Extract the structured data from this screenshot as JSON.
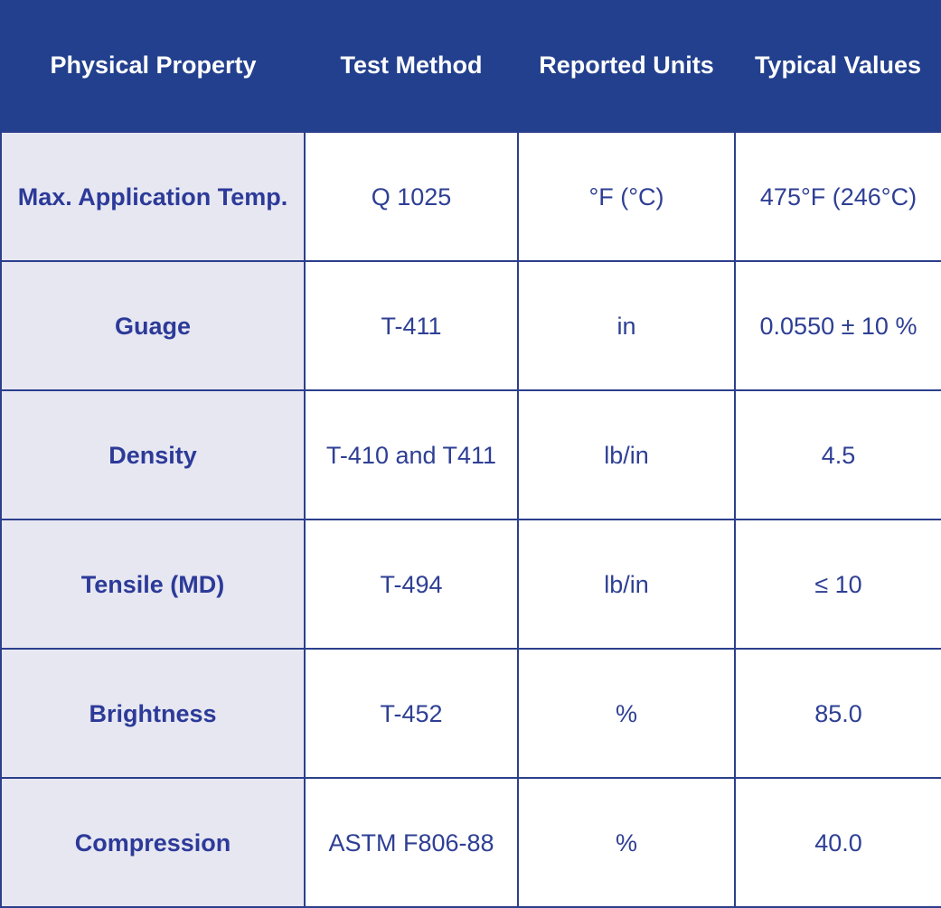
{
  "table": {
    "headers": [
      "Physical Property",
      "Test Method",
      "Reported Units",
      "Typical Values"
    ],
    "rows": [
      [
        "Max. Application Temp.",
        "Q 1025",
        "°F (°C)",
        "475°F (246°C)"
      ],
      [
        "Guage",
        "T-411",
        "in",
        "0.0550 ± 10 %"
      ],
      [
        "Density",
        "T-410 and T411",
        "lb/in",
        "4.5"
      ],
      [
        "Tensile (MD)",
        "T-494",
        "lb/in",
        "≤ 10"
      ],
      [
        "Brightness",
        "T-452",
        "%",
        "85.0"
      ],
      [
        "Compression",
        "ASTM F806-88",
        "%",
        "40.0"
      ]
    ]
  },
  "colors": {
    "header_background": "#23408e",
    "header_text": "#ffffff",
    "property_cell_background": "#e7e7f2",
    "body_text": "#2e3f94",
    "grid_lines": "#2b3f8c"
  }
}
